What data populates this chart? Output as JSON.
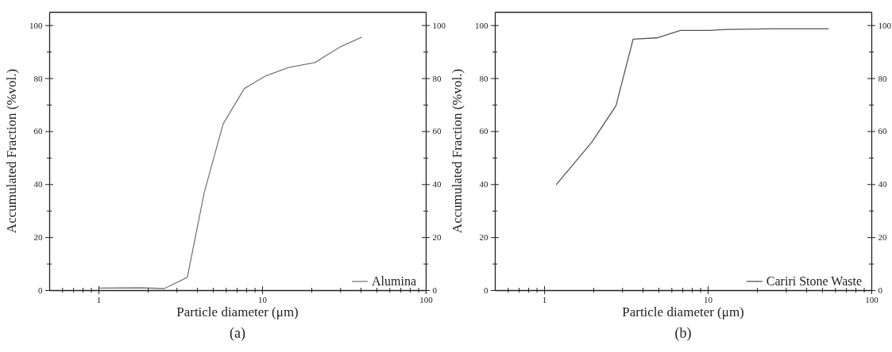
{
  "chart_data": [
    {
      "type": "line",
      "xlabel": "Particle diameter (μm)",
      "ylabel": "Accumulated Fraction (%vol.)",
      "annotations": [
        "(a)"
      ],
      "log": "x",
      "legend": "bottom right",
      "grid": false,
      "xlim": [
        0.5,
        100
      ],
      "xticks": [
        {
          "value": 0.6,
          "label": null
        },
        {
          "value": 0.7,
          "label": null
        },
        {
          "value": 0.8,
          "label": null
        },
        {
          "value": 0.9,
          "label": null
        },
        1,
        {
          "value": 2,
          "label": null
        },
        {
          "value": 3,
          "label": null
        },
        {
          "value": 4,
          "label": null
        },
        {
          "value": 5,
          "label": null
        },
        {
          "value": 6,
          "label": null
        },
        {
          "value": 7,
          "label": null
        },
        {
          "value": 8,
          "label": null
        },
        {
          "value": 9,
          "label": null
        },
        10,
        {
          "value": 20,
          "label": null
        },
        {
          "value": 30,
          "label": null
        },
        {
          "value": 40,
          "label": null
        },
        {
          "value": 50,
          "label": null
        },
        {
          "value": 60,
          "label": null
        },
        {
          "value": 70,
          "label": null
        },
        {
          "value": 80,
          "label": null
        },
        {
          "value": 90,
          "label": null
        },
        100
      ],
      "ylim": [
        0,
        105
      ],
      "yticks": [
        0,
        {
          "value": 10,
          "label": null
        },
        20,
        {
          "value": 30,
          "label": null
        },
        40,
        {
          "value": 50,
          "label": null
        },
        60,
        {
          "value": 70,
          "label": null
        },
        80,
        {
          "value": 90,
          "label": null
        },
        100
      ],
      "y2lim": [
        0,
        105
      ],
      "y2ticks": [
        0,
        {
          "value": 10,
          "label": null
        },
        20,
        {
          "value": 30,
          "label": null
        },
        40,
        {
          "value": 50,
          "label": null
        },
        60,
        {
          "value": 70,
          "label": null
        },
        80,
        {
          "value": 90,
          "label": null
        },
        100
      ],
      "series": [
        {
          "name": "Alumina",
          "color": "#7a7a7a",
          "x": [
            1,
            1.8,
            2.52,
            3.49,
            4.43,
            5.78,
            7.79,
            10.4,
            14.5,
            21,
            29.8,
            40.4
          ],
          "values": [
            0.8,
            0.9,
            0.6,
            4.8,
            36.9,
            62.8,
            76.1,
            80.7,
            84,
            85.9,
            91.7,
            95.4
          ]
        }
      ]
    },
    {
      "type": "line",
      "xlabel": "Particle diameter (μm)",
      "ylabel": "Accumulated Fraction (%vol.)",
      "annotations": [
        "(b)"
      ],
      "log": "x",
      "legend": "bottom right",
      "grid": false,
      "xlim": [
        0.5,
        100
      ],
      "xticks": [
        {
          "value": 0.6,
          "label": null
        },
        {
          "value": 0.7,
          "label": null
        },
        {
          "value": 0.8,
          "label": null
        },
        {
          "value": 0.9,
          "label": null
        },
        1,
        {
          "value": 2,
          "label": null
        },
        {
          "value": 3,
          "label": null
        },
        {
          "value": 4,
          "label": null
        },
        {
          "value": 5,
          "label": null
        },
        {
          "value": 6,
          "label": null
        },
        {
          "value": 7,
          "label": null
        },
        {
          "value": 8,
          "label": null
        },
        {
          "value": 9,
          "label": null
        },
        10,
        {
          "value": 20,
          "label": null
        },
        {
          "value": 30,
          "label": null
        },
        {
          "value": 40,
          "label": null
        },
        {
          "value": 50,
          "label": null
        },
        {
          "value": 60,
          "label": null
        },
        {
          "value": 70,
          "label": null
        },
        {
          "value": 80,
          "label": null
        },
        {
          "value": 90,
          "label": null
        },
        100
      ],
      "ylim": [
        0,
        105
      ],
      "yticks": [
        0,
        {
          "value": 10,
          "label": null
        },
        20,
        {
          "value": 30,
          "label": null
        },
        40,
        {
          "value": 50,
          "label": null
        },
        60,
        {
          "value": 70,
          "label": null
        },
        80,
        {
          "value": 90,
          "label": null
        },
        100
      ],
      "y2lim": [
        0,
        105
      ],
      "y2ticks": [
        0,
        {
          "value": 10,
          "label": null
        },
        20,
        {
          "value": 30,
          "label": null
        },
        40,
        {
          "value": 50,
          "label": null
        },
        60,
        {
          "value": 70,
          "label": null
        },
        80,
        {
          "value": 90,
          "label": null
        },
        100
      ],
      "series": [
        {
          "name": "Cariri Stone Waste",
          "color": "#555555",
          "x": [
            1.19,
            1.96,
            2.75,
            3.5,
            4.89,
            6.81,
            10.2,
            13,
            24,
            54.6
          ],
          "values": [
            39.9,
            55.9,
            69.6,
            94.7,
            95.2,
            98,
            98,
            98.4,
            98.6,
            98.6
          ]
        }
      ]
    }
  ]
}
